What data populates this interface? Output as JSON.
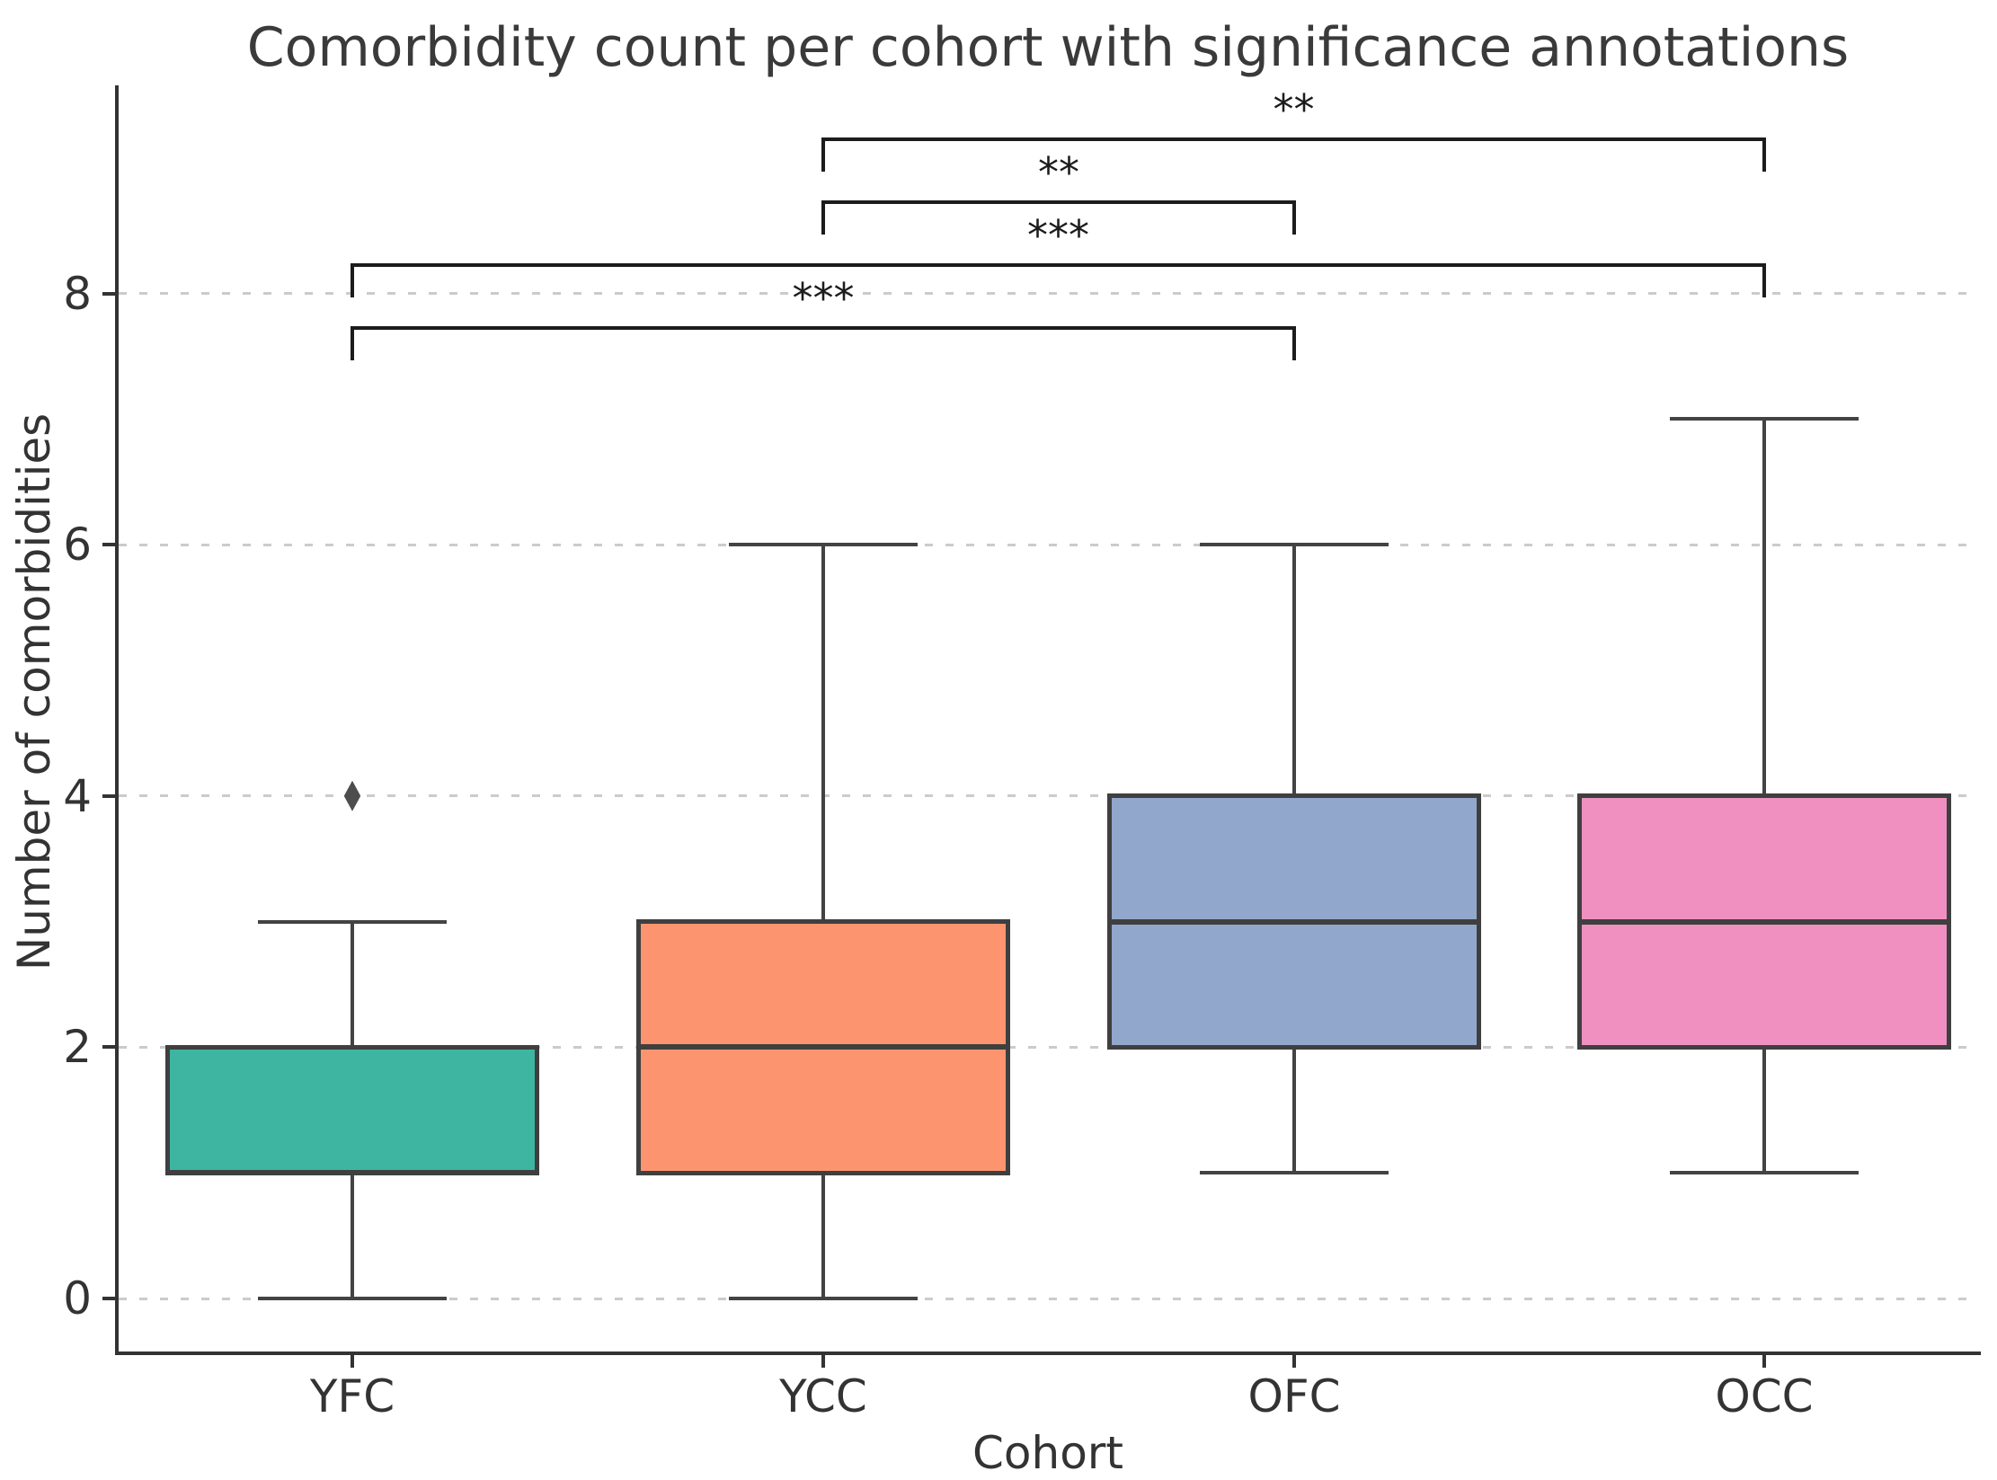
{
  "figure": {
    "title": "Comorbidity count per cohort with significance annotations",
    "xlabel": "Cohort",
    "ylabel": "Number of comorbidities"
  },
  "chart_data": {
    "type": "boxplot",
    "title": "Comorbidity count per cohort with significance annotations",
    "xlabel": "Cohort",
    "ylabel": "Number of comorbidities",
    "categories": [
      "YFC",
      "YCC",
      "OFC",
      "OCC"
    ],
    "yticks": [
      "0",
      "2",
      "4",
      "6",
      "8"
    ],
    "ytick_values": [
      0,
      2,
      4,
      6,
      8
    ],
    "ylim": [
      -0.5,
      9.7
    ],
    "grid": true,
    "legend": false,
    "series": [
      {
        "name": "YFC",
        "whisker_low": 0,
        "q1": 1,
        "median": 1,
        "q3": 2,
        "whisker_high": 3,
        "outliers": [
          4
        ],
        "color": "#3db5a1"
      },
      {
        "name": "YCC",
        "whisker_low": 0,
        "q1": 1,
        "median": 2,
        "q3": 3,
        "whisker_high": 6,
        "outliers": [],
        "color": "#fc956f"
      },
      {
        "name": "OFC",
        "whisker_low": 1,
        "q1": 2,
        "median": 3,
        "q3": 4,
        "whisker_high": 6,
        "outliers": [],
        "color": "#92a7cc"
      },
      {
        "name": "OCC",
        "whisker_low": 1,
        "q1": 2,
        "median": 3,
        "q3": 4,
        "whisker_high": 7,
        "outliers": [],
        "color": "#f090c1"
      }
    ],
    "annotations": [
      {
        "pair": [
          "YCC",
          "OCC"
        ],
        "label": "**"
      },
      {
        "pair": [
          "YCC",
          "OFC"
        ],
        "label": "**"
      },
      {
        "pair": [
          "YFC",
          "OCC"
        ],
        "label": "***"
      },
      {
        "pair": [
          "YFC",
          "OFC"
        ],
        "label": "***"
      }
    ],
    "style_colors": {
      "box_edge": "#3f3f3f",
      "whisker": "#434343",
      "gridline": "#cbcbcb",
      "spine": "#333333",
      "text": "#333333",
      "bracket": "#1c1c1c",
      "outlier_marker": "#4d4d4d"
    }
  }
}
